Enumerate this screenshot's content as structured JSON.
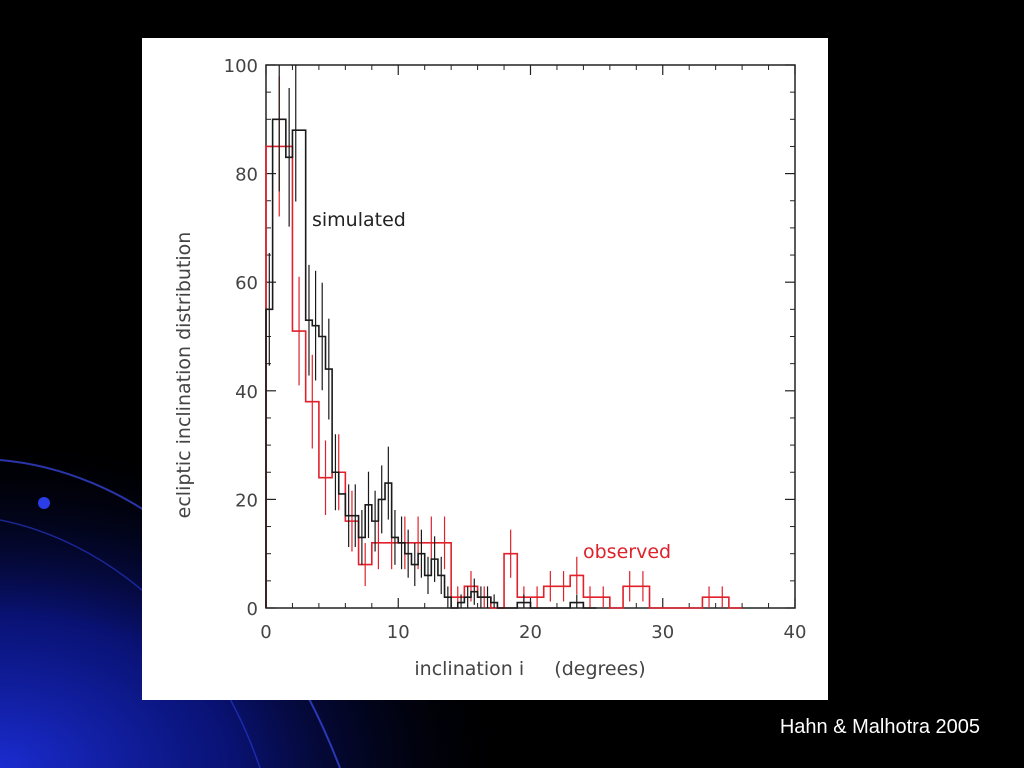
{
  "slide": {
    "credit": "Hahn & Malhotra 2005",
    "background_color": "#000000",
    "accent_color": "#1a2cd0"
  },
  "chart_data": {
    "type": "histogram",
    "title": "",
    "xlabel": "inclination i     (degrees)",
    "ylabel": "ecliptic inclination distribution",
    "xlim": [
      0,
      40
    ],
    "ylim": [
      0,
      100
    ],
    "xticks": [
      0,
      10,
      20,
      30,
      40
    ],
    "yticks": [
      0,
      20,
      40,
      60,
      80,
      100
    ],
    "grid": false,
    "bin_width": 1,
    "series": [
      {
        "name": "simulated",
        "color": "#1a1a1a",
        "bin_left": [
          0,
          0.5,
          1.5,
          2,
          2.5,
          3,
          3.5,
          4,
          4.5,
          5,
          5.5,
          6,
          6.5,
          7,
          7.5,
          8,
          8.5,
          9,
          9.5,
          10,
          10.5,
          11,
          11.5,
          12,
          12.5,
          13,
          13.5,
          14,
          14.5,
          15,
          15.5,
          16,
          16.5,
          17,
          17.5,
          18,
          19,
          20,
          22,
          23,
          24
        ],
        "values": [
          55,
          90,
          83,
          88,
          88,
          53,
          52,
          50,
          44,
          25,
          21,
          17,
          17,
          13,
          19,
          16,
          20,
          23,
          13,
          12,
          10,
          8,
          10,
          6,
          9,
          6,
          2,
          0,
          1,
          2,
          3,
          2,
          2,
          1,
          0,
          0,
          1,
          0,
          0,
          1,
          0
        ],
        "error_bars": [
          true,
          true,
          true,
          true,
          false,
          true,
          true,
          true,
          true,
          true,
          false,
          true,
          true,
          true,
          true,
          true,
          true,
          true,
          true,
          true,
          true,
          true,
          true,
          true,
          true,
          true,
          true,
          false,
          true,
          true,
          true,
          true,
          true,
          true,
          false,
          false,
          true,
          false,
          false,
          true,
          false
        ]
      },
      {
        "name": "observed",
        "color": "#e0202a",
        "bin_left": [
          0,
          2,
          3,
          4,
          5,
          6,
          7,
          8,
          9,
          10,
          11,
          12,
          13,
          14,
          15,
          16,
          17,
          18,
          19,
          20,
          21,
          22,
          23,
          24,
          25,
          26,
          27,
          28,
          29,
          30,
          31,
          32,
          33,
          34,
          35
        ],
        "values": [
          85,
          51,
          38,
          24,
          25,
          16,
          8,
          12,
          12,
          12,
          12,
          12,
          12,
          2,
          4,
          2,
          0,
          10,
          2,
          2,
          4,
          4,
          6,
          2,
          2,
          0,
          4,
          4,
          0,
          0,
          0,
          0,
          2,
          2,
          0
        ],
        "error_bars": [
          true,
          true,
          true,
          true,
          true,
          true,
          true,
          true,
          true,
          true,
          true,
          true,
          true,
          true,
          true,
          true,
          false,
          true,
          true,
          true,
          true,
          true,
          true,
          true,
          true,
          false,
          true,
          true,
          false,
          false,
          false,
          false,
          true,
          true,
          false
        ]
      }
    ],
    "annotations": [
      "simulated",
      "observed"
    ]
  }
}
